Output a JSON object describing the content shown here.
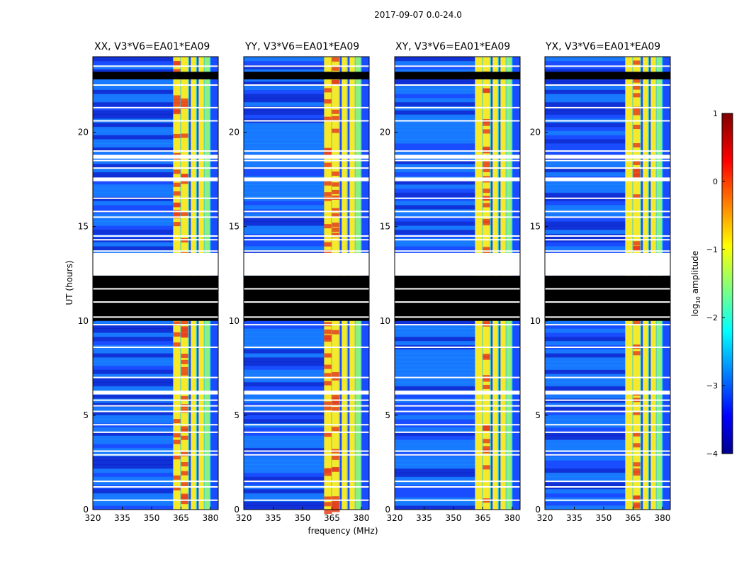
{
  "figure_title": "2017-09-07 0.0-24.0",
  "chart_data": {
    "type": "heatmap",
    "suptitle": "2017-09-07 0.0-24.0",
    "xlabel": "frequency (MHz)",
    "ylabel": "UT (hours)",
    "xlim": [
      320,
      384
    ],
    "ylim": [
      0,
      24
    ],
    "xticks": [
      "320",
      "335",
      "350",
      "365",
      "380"
    ],
    "yticks": [
      "0",
      "5",
      "10",
      "15",
      "20"
    ],
    "panels": [
      {
        "title": "XX, V3*V6=EA01*EA09"
      },
      {
        "title": "YY, V3*V6=EA01*EA09"
      },
      {
        "title": "XY, V3*V6=EA01*EA09"
      },
      {
        "title": "YX, V3*V6=EA01*EA09"
      }
    ],
    "colorbar": {
      "label": "log10 amplitude",
      "label_base": "log",
      "label_sub": "10",
      "label_rest": " amplitude",
      "range": [
        -4,
        1
      ],
      "ticks": [
        "1",
        "0",
        "−1",
        "−2",
        "−3",
        "−4"
      ],
      "colormap": "jet"
    },
    "bright_bands_mhz": [
      [
        361,
        365
      ],
      [
        365,
        369
      ],
      [
        370,
        373
      ],
      [
        374,
        377
      ],
      [
        377,
        380
      ]
    ],
    "flagged_black_hours": [
      [
        10.0,
        12.4
      ],
      [
        22.8,
        23.2
      ]
    ],
    "gap_white_hours": [
      [
        12.4,
        13.6
      ],
      [
        18.6,
        18.8
      ],
      [
        17.4,
        17.6
      ],
      [
        6.1,
        6.3
      ]
    ]
  },
  "colors": {
    "background": "#00008f",
    "low": "#1a4dff",
    "mid": "#18c8ff",
    "band_yellow": "#f5e92a",
    "band_red": "#e5411c",
    "band_green": "#8df07a",
    "flag": "#000000",
    "gap": "#ffffff"
  }
}
